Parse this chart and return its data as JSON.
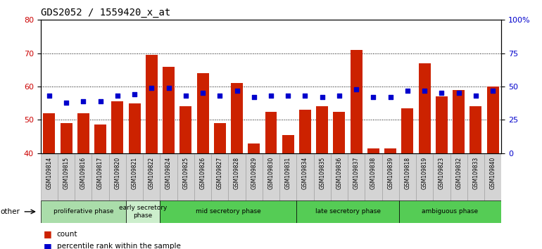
{
  "title": "GDS2052 / 1559420_x_at",
  "samples": [
    "GSM109814",
    "GSM109815",
    "GSM109816",
    "GSM109817",
    "GSM109820",
    "GSM109821",
    "GSM109822",
    "GSM109824",
    "GSM109825",
    "GSM109826",
    "GSM109827",
    "GSM109828",
    "GSM109829",
    "GSM109830",
    "GSM109831",
    "GSM109834",
    "GSM109835",
    "GSM109836",
    "GSM109837",
    "GSM109838",
    "GSM109839",
    "GSM109818",
    "GSM109819",
    "GSM109823",
    "GSM109832",
    "GSM109833",
    "GSM109840"
  ],
  "counts": [
    52.0,
    49.0,
    52.0,
    48.5,
    55.5,
    55.0,
    69.5,
    66.0,
    54.0,
    64.0,
    49.0,
    61.0,
    43.0,
    52.5,
    45.5,
    53.0,
    54.0,
    52.5,
    71.0,
    41.5,
    41.5,
    53.5,
    67.0,
    57.0,
    59.0,
    54.0,
    60.0
  ],
  "percentiles_pct": [
    43,
    38,
    39,
    39,
    43,
    44,
    49,
    49,
    43,
    45,
    43,
    47,
    42,
    43,
    43,
    43,
    42,
    43,
    48,
    42,
    42,
    47,
    47,
    45,
    45,
    43,
    47
  ],
  "phases": [
    {
      "label": "proliferative phase",
      "start": 0,
      "end": 5,
      "color": "#aaddaa"
    },
    {
      "label": "early secretory\nphase",
      "start": 5,
      "end": 7,
      "color": "#cceecc"
    },
    {
      "label": "mid secretory phase",
      "start": 7,
      "end": 15,
      "color": "#55cc55"
    },
    {
      "label": "late secretory phase",
      "start": 15,
      "end": 21,
      "color": "#55cc55"
    },
    {
      "label": "ambiguous phase",
      "start": 21,
      "end": 27,
      "color": "#55cc55"
    }
  ],
  "ylim_left": [
    40,
    80
  ],
  "ylim_right": [
    0,
    100
  ],
  "left_ticks": [
    40,
    50,
    60,
    70,
    80
  ],
  "right_ticks": [
    0,
    25,
    50,
    75,
    100
  ],
  "right_tick_labels": [
    "0",
    "25",
    "50",
    "75",
    "100%"
  ],
  "bar_color": "#cc2200",
  "dot_color": "#0000cc",
  "title_fontsize": 10,
  "tick_fontsize": 7,
  "axis_label_color_left": "#cc0000",
  "axis_label_color_right": "#0000cc"
}
